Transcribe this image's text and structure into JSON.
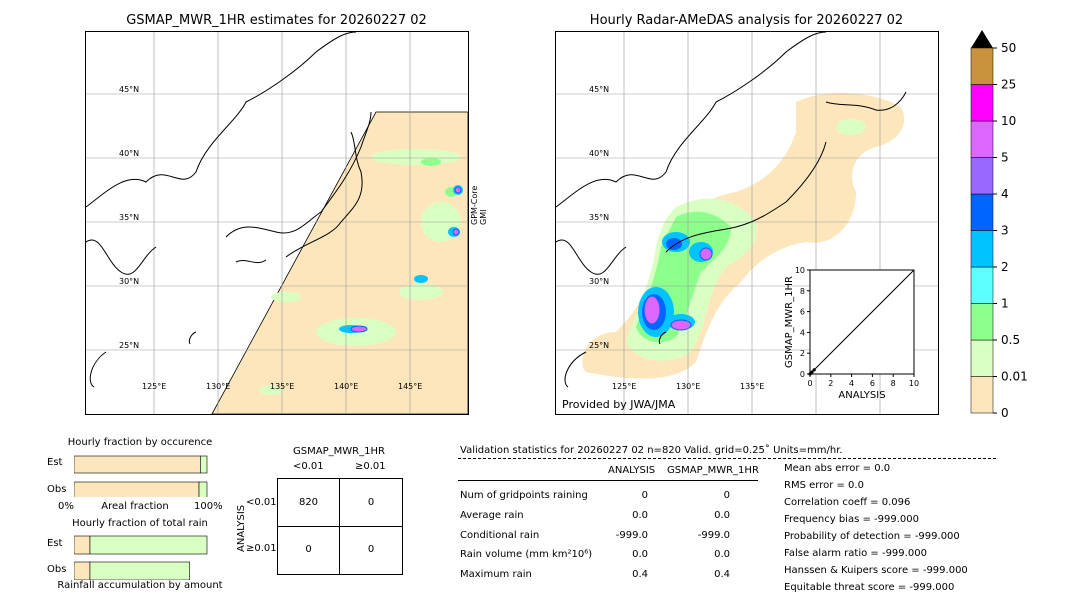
{
  "left_map": {
    "title": "GSMAP_MWR_1HR estimates for 20260227 02",
    "satellite_label": "GPM-Core\nGMI",
    "lat_labels": [
      "45°N",
      "40°N",
      "35°N",
      "30°N",
      "25°N"
    ],
    "lon_labels": [
      "125°E",
      "130°E",
      "135°E",
      "140°E",
      "145°E"
    ]
  },
  "right_map": {
    "title": "Hourly Radar-AMeDAS analysis for 20260227 02",
    "credit": "Provided by JWA/JMA",
    "lat_labels": [
      "45°N",
      "40°N",
      "35°N",
      "30°N",
      "25°N"
    ],
    "lon_labels": [
      "125°E",
      "130°E",
      "135°E"
    ]
  },
  "colorbar": {
    "ticks": [
      "50",
      "25",
      "10",
      "5",
      "4",
      "3",
      "2",
      "1",
      "0.5",
      "0.01",
      "0"
    ],
    "colors": [
      "#fde6bc",
      "#d9ffc3",
      "#8cff8c",
      "#5effff",
      "#00c3ff",
      "#0065ff",
      "#9966ff",
      "#dd66ff",
      "#ff00ff",
      "#c9923c"
    ],
    "extend_color": "#000000"
  },
  "chart_data": [
    {
      "type": "scatter",
      "title": "",
      "xlabel": "ANALYSIS",
      "ylabel": "GSMAP_MWR_1HR",
      "xlim": [
        0,
        10
      ],
      "ylim": [
        0,
        10
      ],
      "x_ticks": [
        "0",
        "2",
        "4",
        "6",
        "8",
        "10"
      ],
      "y_ticks": [
        "0",
        "2",
        "4",
        "6",
        "8",
        "10"
      ],
      "points": [
        [
          0,
          0
        ],
        [
          0.2,
          0.2
        ],
        [
          0.4,
          0.4
        ]
      ],
      "diagonal": true
    },
    {
      "type": "bar",
      "title": "Hourly fraction by occurence",
      "categories": [
        "Est",
        "Obs"
      ],
      "series": [
        {
          "values": [
            0.95,
            0.94
          ],
          "color": "#fde6bc"
        },
        {
          "values": [
            0.05,
            0.06
          ],
          "color": "#d9ffc3"
        }
      ],
      "xlabel": "Areal fraction",
      "x_ticks": [
        "0%",
        "100%"
      ]
    },
    {
      "type": "bar",
      "title": "Hourly fraction of total rain",
      "categories": [
        "Est",
        "Obs"
      ],
      "series": [
        {
          "values": [
            0.12,
            0.12
          ],
          "color": "#fde6bc"
        },
        {
          "values": [
            0.88,
            0.75
          ],
          "color": "#d9ffc3"
        }
      ],
      "xlabel": "Rainfall accumulation by amount"
    }
  ],
  "contingency": {
    "title": "GSMAP_MWR_1HR",
    "col_headers": [
      "<0.01",
      "≥0.01"
    ],
    "row_axis_label": "ANALYSIS",
    "row_headers": [
      "<0.01",
      "≥0.01"
    ],
    "cells": [
      [
        "820",
        "0"
      ],
      [
        "0",
        "0"
      ]
    ]
  },
  "validation": {
    "header": "Validation statistics for 20260227 02  n=820 Valid. grid=0.25˚ Units=mm/hr.",
    "col_analysis": "ANALYSIS",
    "col_gsmap": "GSMAP_MWR_1HR",
    "rows": [
      {
        "label": "Num of gridpoints raining",
        "a": "0",
        "g": "0"
      },
      {
        "label": "Average rain",
        "a": "0.0",
        "g": "0.0"
      },
      {
        "label": "Conditional rain",
        "a": "-999.0",
        "g": "-999.0"
      },
      {
        "label": "Rain volume (mm km²10⁶)",
        "a": "0.0",
        "g": "0.0"
      },
      {
        "label": "Maximum rain",
        "a": "0.4",
        "g": "0.4"
      }
    ],
    "scores": [
      "Mean abs error =    0.0",
      "RMS error =    0.0",
      "Correlation coeff =  0.096",
      "Frequency bias = -999.000",
      "Probability of detection = -999.000",
      "False alarm ratio = -999.000",
      "Hanssen & Kuipers score = -999.000",
      "Equitable threat score = -999.000"
    ]
  }
}
